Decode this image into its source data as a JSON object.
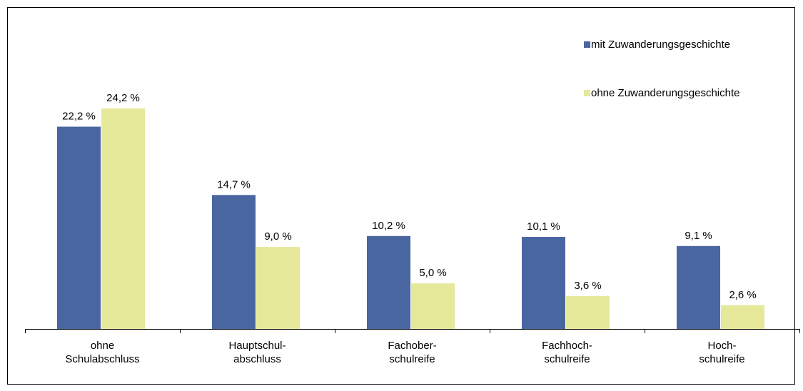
{
  "chart_data": {
    "type": "bar",
    "categories": [
      "ohne\nSchulabschluss",
      "Hauptschul-\nabschluss",
      "Fachober-\nschulreife",
      "Fachhoch-\nschulreife",
      "Hoch-\nschulreife"
    ],
    "series": [
      {
        "name": "mit Zuwanderungsgeschichte",
        "color": "#4a66a0",
        "values": [
          22.2,
          14.7,
          10.2,
          10.1,
          9.1
        ],
        "value_labels": [
          "22,2 %",
          "14,7 %",
          "10,2 %",
          "10,1 %",
          "9,1 %"
        ]
      },
      {
        "name": "ohne Zuwanderungsgeschichte",
        "color": "#e6e89a",
        "values": [
          24.2,
          9.0,
          5.0,
          3.6,
          2.6
        ],
        "value_labels": [
          "24,2 %",
          "9,0 %",
          "5,0 %",
          "3,6 %",
          "2,6 %"
        ]
      }
    ],
    "legend": "upper right"
  }
}
